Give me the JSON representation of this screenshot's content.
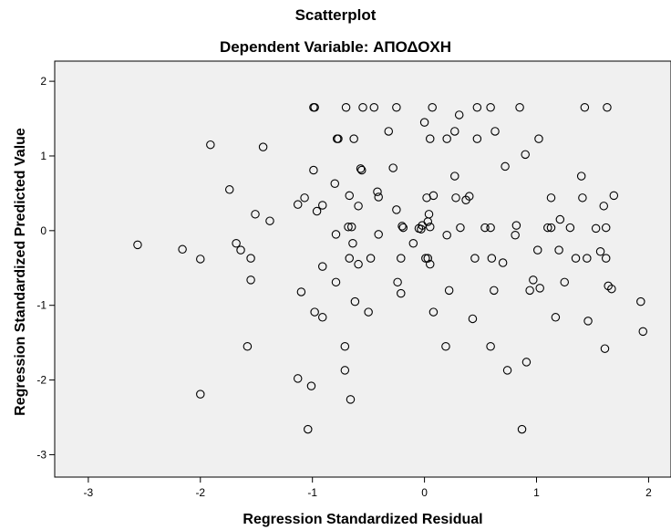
{
  "chart_data": {
    "type": "scatter",
    "title": "Scatterplot",
    "subtitle": "Dependent Variable: ΑΠΟΔΟΧΗ",
    "xlabel": "Regression Standardized Residual",
    "ylabel": "Regression Standardized Predicted Value",
    "xlim": [
      -3.3,
      2.2
    ],
    "ylim": [
      -3.3,
      2.27
    ],
    "xticks": [
      "-3",
      "-2",
      "-1",
      "0",
      "1",
      "2"
    ],
    "yticks": [
      "-3",
      "-2",
      "-1",
      "0",
      "1",
      "2"
    ],
    "xtick_values": [
      -3,
      -2,
      -1,
      0,
      1,
      2
    ],
    "ytick_values": [
      -3,
      -2,
      -1,
      0,
      1,
      2
    ],
    "grid": false,
    "plot_background": "#f0f0f0",
    "marker_color": "#000000",
    "points": [
      [
        -0.99,
        1.65
      ],
      [
        -0.98,
        1.65
      ],
      [
        -0.7,
        1.65
      ],
      [
        -0.55,
        1.65
      ],
      [
        -0.45,
        1.65
      ],
      [
        -0.25,
        1.65
      ],
      [
        0.07,
        1.65
      ],
      [
        0.47,
        1.65
      ],
      [
        0.59,
        1.65
      ],
      [
        0.85,
        1.65
      ],
      [
        1.43,
        1.65
      ],
      [
        1.63,
        1.65
      ],
      [
        0.31,
        1.55
      ],
      [
        0.0,
        1.45
      ],
      [
        0.27,
        1.33
      ],
      [
        0.63,
        1.33
      ],
      [
        -0.32,
        1.33
      ],
      [
        -0.78,
        1.23
      ],
      [
        -0.77,
        1.23
      ],
      [
        -0.63,
        1.23
      ],
      [
        0.05,
        1.23
      ],
      [
        0.2,
        1.23
      ],
      [
        0.47,
        1.23
      ],
      [
        1.02,
        1.23
      ],
      [
        -1.91,
        1.15
      ],
      [
        -1.44,
        1.12
      ],
      [
        0.9,
        1.02
      ],
      [
        0.72,
        0.86
      ],
      [
        -0.28,
        0.84
      ],
      [
        -0.99,
        0.81
      ],
      [
        -0.57,
        0.83
      ],
      [
        -0.56,
        0.81
      ],
      [
        0.27,
        0.73
      ],
      [
        1.4,
        0.73
      ],
      [
        -0.8,
        0.63
      ],
      [
        -1.74,
        0.55
      ],
      [
        -0.42,
        0.52
      ],
      [
        -0.41,
        0.45
      ],
      [
        -1.07,
        0.44
      ],
      [
        -0.67,
        0.47
      ],
      [
        0.02,
        0.44
      ],
      [
        0.08,
        0.47
      ],
      [
        0.28,
        0.44
      ],
      [
        0.37,
        0.41
      ],
      [
        0.4,
        0.46
      ],
      [
        1.13,
        0.44
      ],
      [
        1.41,
        0.44
      ],
      [
        1.69,
        0.47
      ],
      [
        -1.13,
        0.35
      ],
      [
        -0.91,
        0.34
      ],
      [
        -0.59,
        0.33
      ],
      [
        1.6,
        0.33
      ],
      [
        -0.96,
        0.26
      ],
      [
        -0.25,
        0.28
      ],
      [
        0.04,
        0.22
      ],
      [
        -1.51,
        0.22
      ],
      [
        -1.38,
        0.13
      ],
      [
        0.03,
        0.12
      ],
      [
        1.21,
        0.15
      ],
      [
        -0.02,
        0.07
      ],
      [
        -0.68,
        0.05
      ],
      [
        -0.65,
        0.05
      ],
      [
        -0.2,
        0.06
      ],
      [
        -0.19,
        0.04
      ],
      [
        -0.05,
        0.03
      ],
      [
        -0.03,
        0.02
      ],
      [
        0.05,
        0.05
      ],
      [
        0.32,
        0.04
      ],
      [
        0.54,
        0.04
      ],
      [
        0.59,
        0.04
      ],
      [
        0.82,
        0.07
      ],
      [
        1.1,
        0.04
      ],
      [
        1.13,
        0.04
      ],
      [
        1.3,
        0.04
      ],
      [
        1.53,
        0.03
      ],
      [
        1.62,
        0.04
      ],
      [
        -0.79,
        -0.05
      ],
      [
        -0.41,
        -0.05
      ],
      [
        0.2,
        -0.06
      ],
      [
        0.81,
        -0.06
      ],
      [
        -0.64,
        -0.17
      ],
      [
        -0.1,
        -0.17
      ],
      [
        -2.56,
        -0.19
      ],
      [
        -2.16,
        -0.25
      ],
      [
        -1.68,
        -0.17
      ],
      [
        -1.64,
        -0.26
      ],
      [
        1.01,
        -0.26
      ],
      [
        1.2,
        -0.26
      ],
      [
        1.57,
        -0.28
      ],
      [
        -2.0,
        -0.38
      ],
      [
        -1.55,
        -0.37
      ],
      [
        -0.67,
        -0.37
      ],
      [
        -0.48,
        -0.37
      ],
      [
        -0.21,
        -0.37
      ],
      [
        0.01,
        -0.37
      ],
      [
        0.03,
        -0.37
      ],
      [
        0.45,
        -0.37
      ],
      [
        0.6,
        -0.37
      ],
      [
        1.35,
        -0.37
      ],
      [
        1.45,
        -0.37
      ],
      [
        1.62,
        -0.37
      ],
      [
        0.05,
        -0.45
      ],
      [
        -0.59,
        -0.45
      ],
      [
        -0.91,
        -0.48
      ],
      [
        0.7,
        -0.43
      ],
      [
        -1.55,
        -0.66
      ],
      [
        -0.79,
        -0.69
      ],
      [
        -0.24,
        -0.69
      ],
      [
        0.97,
        -0.66
      ],
      [
        1.25,
        -0.69
      ],
      [
        -0.21,
        -0.84
      ],
      [
        -1.1,
        -0.82
      ],
      [
        0.22,
        -0.8
      ],
      [
        0.62,
        -0.8
      ],
      [
        0.94,
        -0.8
      ],
      [
        1.03,
        -0.77
      ],
      [
        1.64,
        -0.74
      ],
      [
        1.67,
        -0.78
      ],
      [
        -0.62,
        -0.95
      ],
      [
        1.93,
        -0.95
      ],
      [
        -0.98,
        -1.09
      ],
      [
        -0.5,
        -1.09
      ],
      [
        0.08,
        -1.09
      ],
      [
        -0.91,
        -1.16
      ],
      [
        0.43,
        -1.18
      ],
      [
        1.17,
        -1.16
      ],
      [
        1.46,
        -1.21
      ],
      [
        1.95,
        -1.35
      ],
      [
        -1.58,
        -1.55
      ],
      [
        -0.71,
        -1.55
      ],
      [
        0.19,
        -1.55
      ],
      [
        0.59,
        -1.55
      ],
      [
        1.61,
        -1.58
      ],
      [
        0.91,
        -1.76
      ],
      [
        -0.71,
        -1.87
      ],
      [
        0.74,
        -1.87
      ],
      [
        -1.13,
        -1.98
      ],
      [
        -1.01,
        -2.08
      ],
      [
        -2.0,
        -2.19
      ],
      [
        -0.66,
        -2.26
      ],
      [
        -1.04,
        -2.66
      ],
      [
        0.87,
        -2.66
      ]
    ]
  }
}
